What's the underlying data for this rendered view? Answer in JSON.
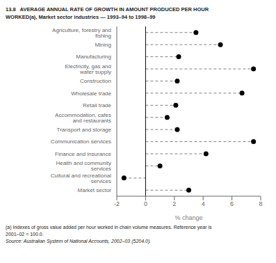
{
  "chart_data": {
    "type": "dot",
    "orientation": "horizontal",
    "title": "13.8   AVERAGE ANNUAL RATE OF GROWTH IN AMOUNT PRODUCED PER HOUR",
    "subtitle": "WORKED(a), Market sector industries — 1993–94 to 1998–99",
    "annotations": [
      "(a) Indexes of gross value added per hour worked in chain volume measures. Reference year is",
      "2001–02 = 100.0.",
      "Source: Australian System of National Accounts, 2002–03 (5204.0)."
    ],
    "xlabel": "% change",
    "categories": [
      "Agriculture, forestry and fishing",
      "Mining",
      "Manufacturing",
      "Electricity, gas and water supply",
      "Construction",
      "Wholesale trade",
      "Retail trade",
      "Accommodation, cafes and restaurants",
      "Transport and storage",
      "Communication services",
      "Finance and insurance",
      "Health and community services",
      "Cultural and recreational services",
      "Market sector"
    ],
    "values": [
      3.5,
      5.2,
      2.3,
      7.5,
      2.2,
      6.7,
      2.1,
      1.5,
      2.2,
      7.5,
      4.2,
      1.0,
      -1.5,
      3.0
    ],
    "xlim": [
      -2,
      8
    ],
    "xticks": [
      -2,
      0,
      2,
      4,
      6,
      8
    ],
    "color": "#000000",
    "line_style": "dashed",
    "marker": "circle",
    "grid": false
  }
}
